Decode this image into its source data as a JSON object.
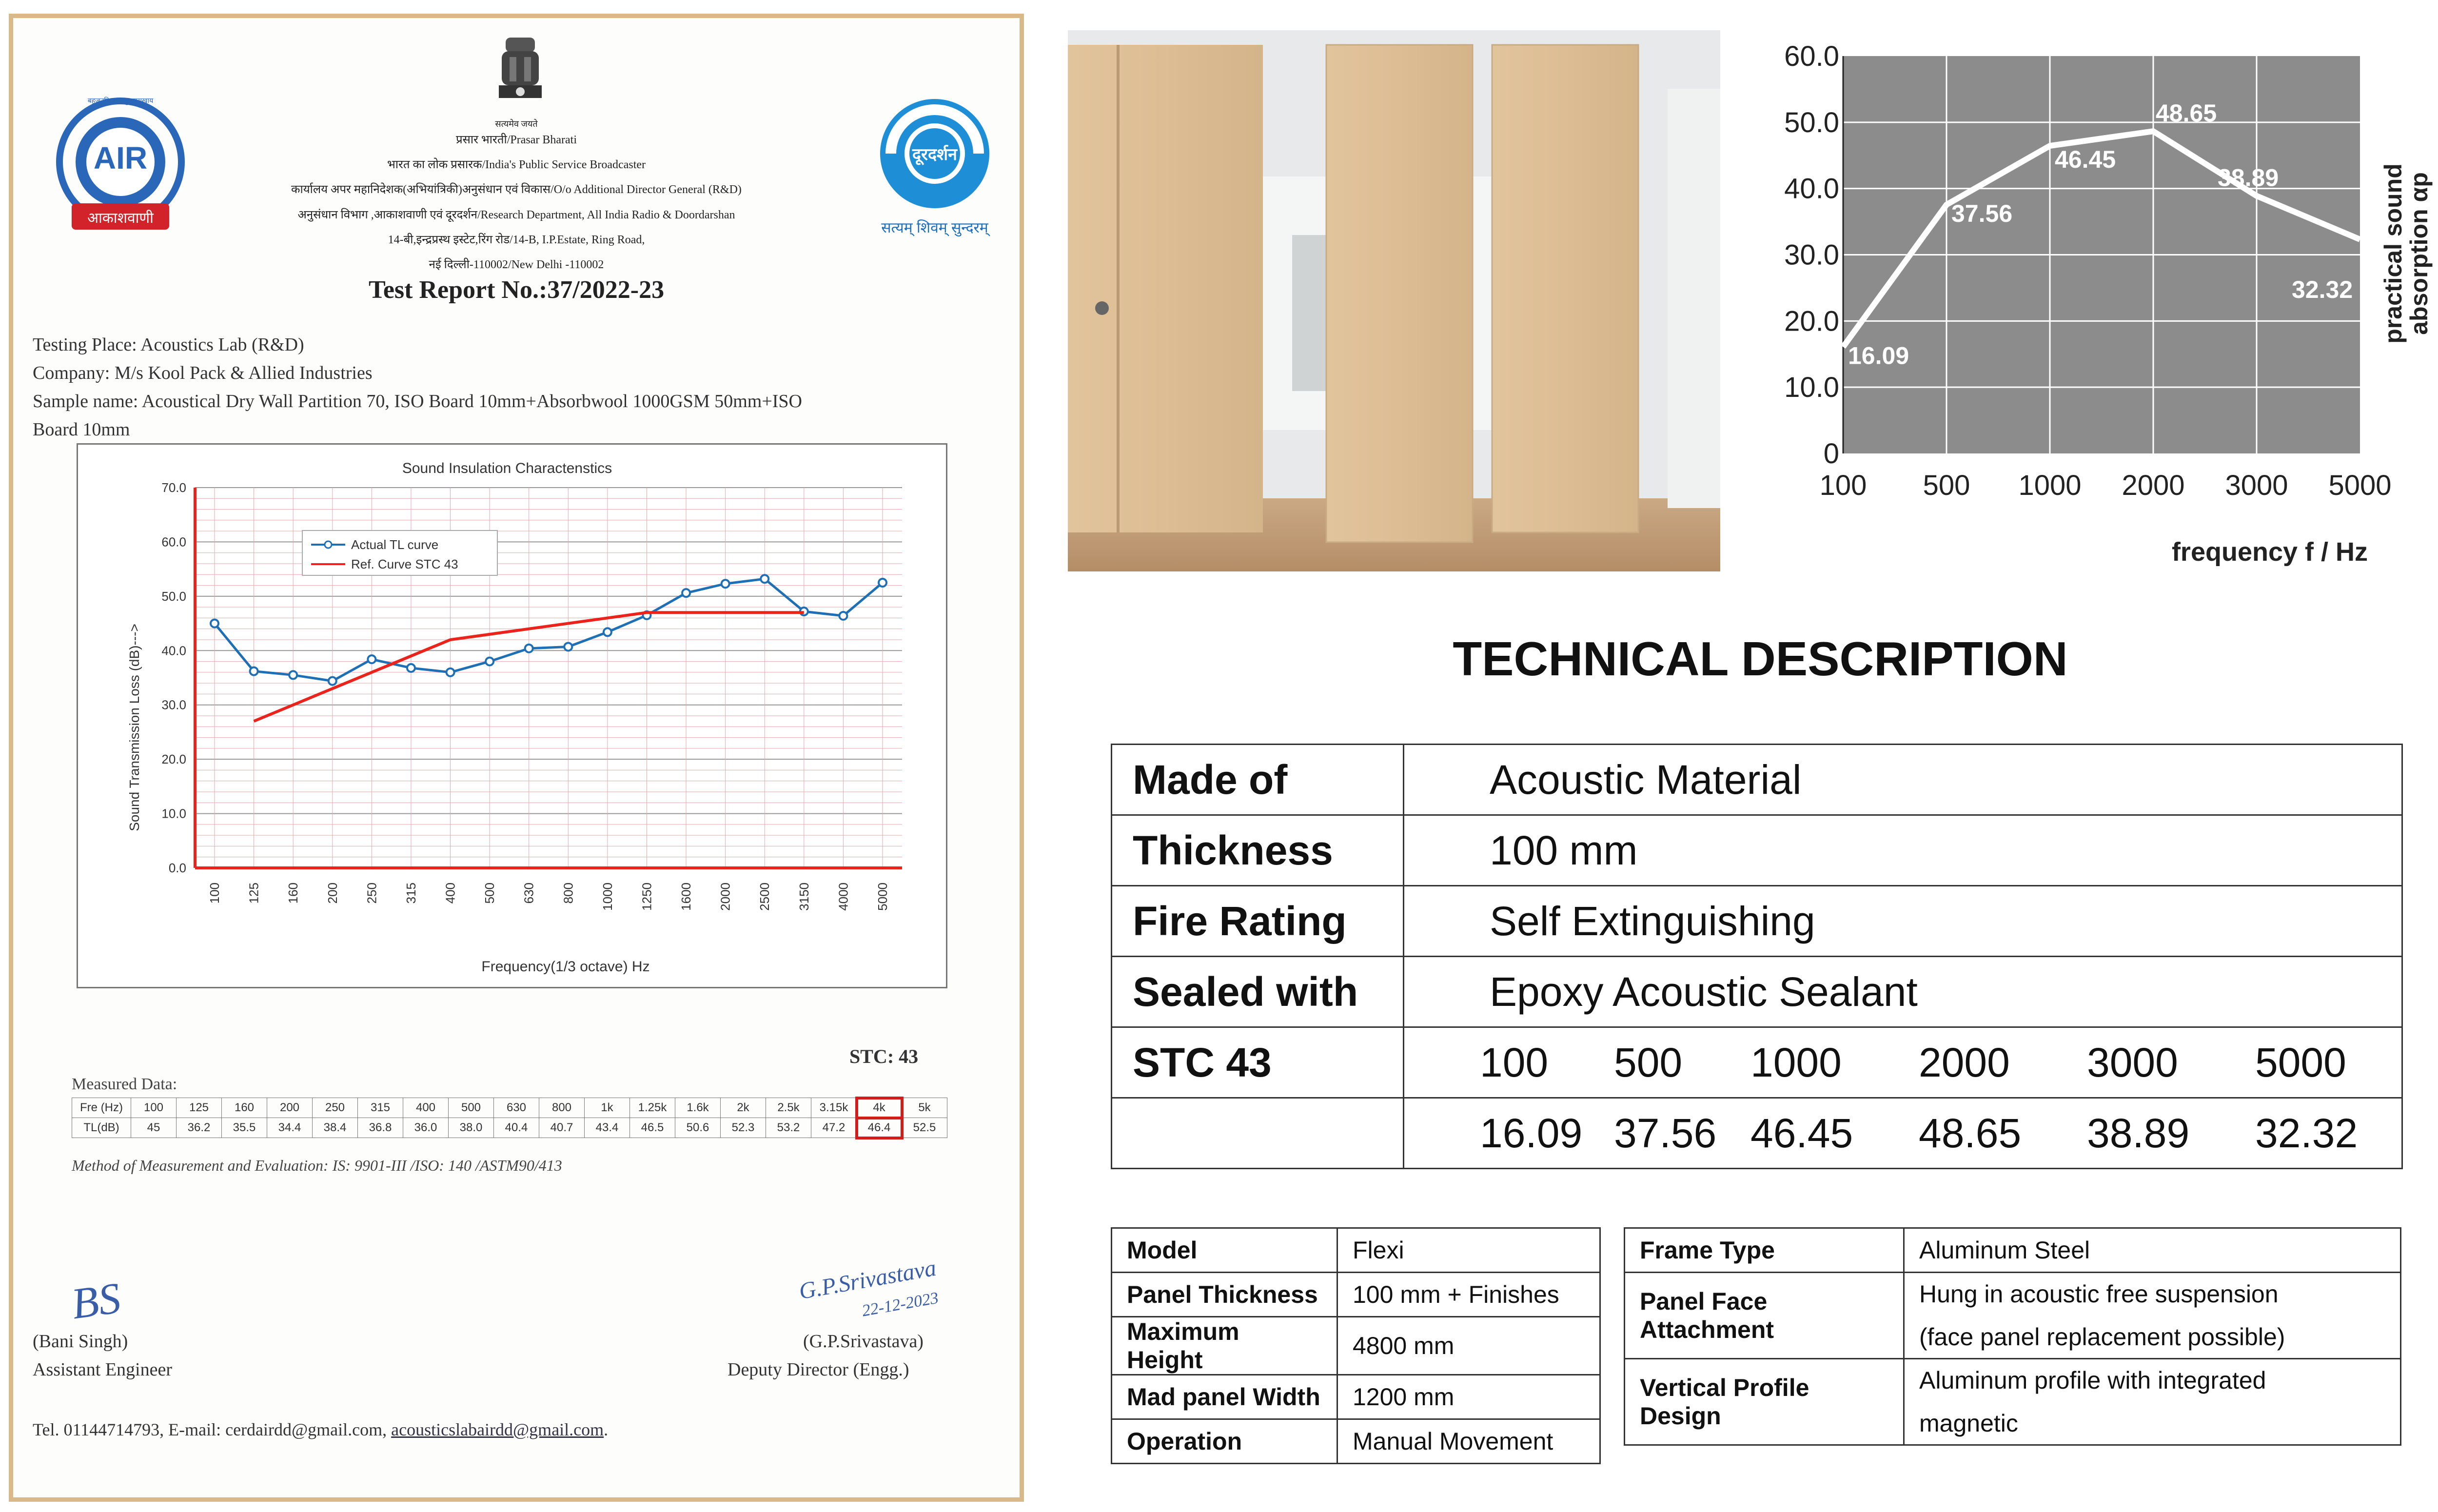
{
  "certificate": {
    "seal_caption": "सत्यमेव जयते",
    "header_lines": [
      "प्रसार भारती/Prasar Bharati",
      "भारत का लोक प्रसारक/India's Public Service Broadcaster",
      "कार्यालय अपर महानिदेशक(अभियांत्रिकी)अनुसंधान एवं विकास/O/o Additional Director General (R&D)",
      "अनुसंधान विभाग ,आकाशवाणी एवं दूरदर्शन/Research Department, All India Radio & Doordarshan",
      "14-बी,इन्द्रप्रस्थ इस्टेट,रिंग रोड/14-B, I.P.Estate, Ring Road,",
      "नई दिल्ली-110002/New Delhi -110002"
    ],
    "air_logo_text": "AIR",
    "air_logo_caption": "आकाशवाणी",
    "air_logo_hindi_ring": "बहुजनहिताय बहुजनसुखाय",
    "dd_logo_text": "दूरदर्शन",
    "dd_logo_caption": "सत्यम् शिवम् सुन्दरम्",
    "report_no": "Test Report No.:37/2022-23",
    "testing_place": "Testing Place: Acoustics Lab (R&D)",
    "company": "Company:  M/s Kool Pack & Allied Industries",
    "sample_line1": "Sample name: Acoustical Dry Wall Partition 70, ISO Board 10mm+Absorbwool 1000GSM 50mm+ISO",
    "sample_line2": "Board 10mm",
    "stc_label": "STC: 43",
    "measured_label": "Measured Data:",
    "method": "Method of Measurement and Evaluation: IS: 9901-III /ISO: 140 /ASTM90/413",
    "sig_left_scribble": "BS",
    "sig_left_name": "(Bani Singh)",
    "sig_left_title": "Assistant Engineer",
    "sig_right_scribble": "G.P.Srivastava",
    "sig_right_date": "22-12-2023",
    "sig_right_name": "(G.P.Srivastava)",
    "sig_right_title": "Deputy Director (Engg.)",
    "contact_prefix": "Tel. 01144714793, E-mail: cerdairdd@gmail.com, ",
    "contact_link": "acousticslabairdd@gmail.com",
    "contact_suffix": "."
  },
  "measured_table": {
    "row1_head": "Fre (Hz)",
    "row2_head": "TL(dB)",
    "freqs": [
      "100",
      "125",
      "160",
      "200",
      "250",
      "315",
      "400",
      "500",
      "630",
      "800",
      "1k",
      "1.25k",
      "1.6k",
      "2k",
      "2.5k",
      "3.15k",
      "4k",
      "5k"
    ],
    "tl": [
      "45",
      "36.2",
      "35.5",
      "34.4",
      "38.4",
      "36.8",
      "36.0",
      "38.0",
      "40.4",
      "40.7",
      "43.4",
      "46.5",
      "50.6",
      "52.3",
      "53.2",
      "47.2",
      "46.4",
      "52.5"
    ],
    "highlight_index": 16
  },
  "chart_data": [
    {
      "type": "line",
      "title": "Sound Insulation Charactenstics",
      "xlabel": "Frequency(1/3 octave) Hz",
      "ylabel": "Sound Transmission Loss (dB)--->",
      "categories": [
        "100",
        "125",
        "160",
        "200",
        "250",
        "315",
        "400",
        "500",
        "630",
        "800",
        "1000",
        "1250",
        "1600",
        "2000",
        "2500",
        "3150",
        "4000",
        "5000"
      ],
      "ylim": [
        0,
        70
      ],
      "yticks": [
        "0.0",
        "10.0",
        "20.0",
        "30.0",
        "40.0",
        "50.0",
        "60.0",
        "70.0"
      ],
      "grid": true,
      "legend_position": "top-left",
      "series": [
        {
          "name": "Actual TL curve",
          "color": "#1f6fb5",
          "values": [
            45,
            36.2,
            35.5,
            34.4,
            38.4,
            36.8,
            36.0,
            38.0,
            40.4,
            40.7,
            43.4,
            46.5,
            50.6,
            52.3,
            53.2,
            47.2,
            46.4,
            52.5
          ]
        },
        {
          "name": "Ref. Curve STC 43",
          "color": "#e8241c",
          "values": [
            null,
            27,
            30,
            33,
            36,
            39,
            42,
            43,
            44,
            45,
            46,
            47,
            47,
            47,
            47,
            47,
            null,
            null
          ]
        }
      ]
    },
    {
      "type": "line",
      "title": "",
      "xlabel": "frequency f / Hz",
      "ylabel": "practical sound absorption αp",
      "ylabel_line1": "practical sound",
      "ylabel_line2": "absorption αp",
      "categories": [
        "100",
        "500",
        "1000",
        "2000",
        "3000",
        "5000"
      ],
      "yticks": [
        "0",
        "10.0",
        "20.0",
        "30.0",
        "40.0",
        "50.0",
        "60.0"
      ],
      "ylim": [
        0,
        60
      ],
      "grid": true,
      "series": [
        {
          "name": "absorption",
          "color": "#ffffff",
          "values": [
            16.09,
            37.56,
            46.45,
            48.65,
            38.89,
            32.32
          ],
          "labels": [
            "16.09",
            "37.56",
            "46.45",
            "48.65",
            "38.89",
            "32.32"
          ]
        }
      ]
    }
  ],
  "tech": {
    "title": "TECHNICAL DESCRIPTION",
    "rows": [
      {
        "key": "Made of",
        "value": "Acoustic Material"
      },
      {
        "key": "Thickness",
        "value": "100 mm"
      },
      {
        "key": "Fire Rating",
        "value": "Self Extinguishing"
      },
      {
        "key": "Sealed with",
        "value": "Epoxy Acoustic Sealant"
      }
    ],
    "stc_key": "STC 43",
    "freqs": [
      "100",
      "500",
      "1000",
      "2000",
      "3000",
      "5000"
    ],
    "values": [
      "16.09",
      "37.56",
      "46.45",
      "48.65",
      "38.89",
      "32.32"
    ]
  },
  "spec_left": [
    {
      "key": "Model",
      "value": "Flexi"
    },
    {
      "key": "Panel Thickness",
      "value": "100 mm + Finishes"
    },
    {
      "key": "Maximum Height",
      "value": "4800 mm"
    },
    {
      "key": "Mad panel Width",
      "value": "1200 mm"
    },
    {
      "key": "Operation",
      "value": "Manual Movement"
    }
  ],
  "spec_right": {
    "frame_key": "Frame Type",
    "frame_value": "Aluminum Steel",
    "face_key": "Panel Face Attachment",
    "face_value1": "Hung in acoustic free suspension",
    "face_value2": "(face panel replacement possible)",
    "profile_key": "Vertical Profile Design",
    "profile_value1": "Aluminum profile with integrated",
    "profile_value2": "magnetic"
  },
  "colors": {
    "certificate_border": "#d9b98a",
    "tl_curve": "#1f6fb5",
    "stc_curve": "#e8241c",
    "absorb_bg": "#8c8c8c"
  }
}
